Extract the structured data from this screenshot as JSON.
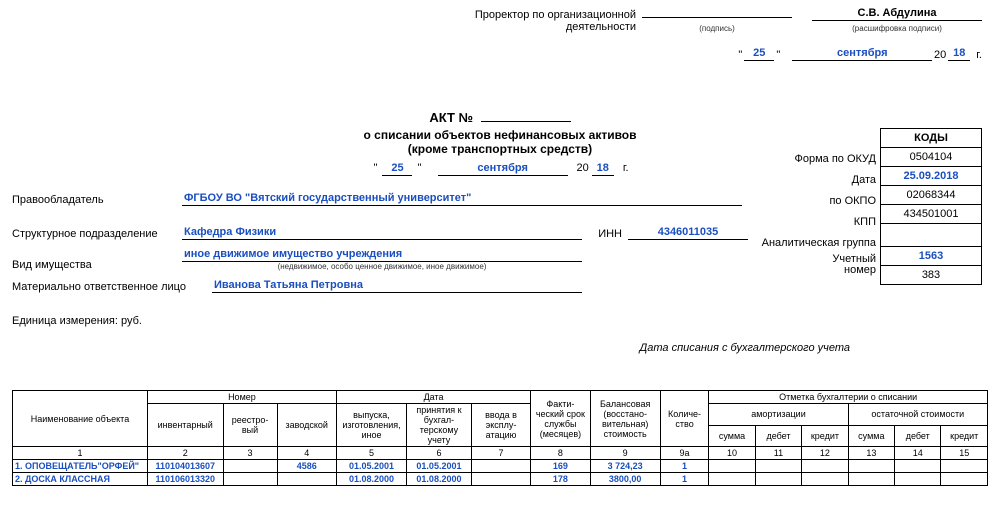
{
  "header": {
    "role_line1": "Проректор по организационной",
    "role_line2": "деятельности",
    "sign_sub": "(подпись)",
    "name": "С.В. Абдулина",
    "name_sub": "(расшифровка подписи)",
    "day": "25",
    "month": "сентября",
    "year_prefix": "20",
    "year": "18",
    "year_suffix": "г."
  },
  "title": {
    "act": "АКТ №",
    "sub1": "о списании объектов нефинансовых активов",
    "sub2": "(кроме транспортных средств)"
  },
  "date2": {
    "day": "25",
    "month": "сентября",
    "yp": "20",
    "y": "18",
    "ys": "г."
  },
  "fields": {
    "owner_label": "Правообладатель",
    "owner_val": "ФГБОУ ВО \"Вятский государственный университет\"",
    "dept_label": "Структурное подразделение",
    "dept_val": "Кафедра Физики",
    "inn_label": "ИНН",
    "inn_val": "4346011035",
    "kind_label": "Вид имущества",
    "kind_val": "иное движимое имущество учреждения",
    "kind_sub": "(недвижимое, особо ценное движимое, иное движимое)",
    "resp_label": "Материально ответственное лицо",
    "resp_val": "Иванова Татьяна Петровна",
    "unit_label": "Единица измерения: руб.",
    "writeoff_date_label": "Дата списания с бухгалтерского учета"
  },
  "codes": {
    "header": "КОДЫ",
    "okud_label": "Форма по ОКУД",
    "okud": "0504104",
    "date_label": "Дата",
    "date": "25.09.2018",
    "okpo_label": "по ОКПО",
    "okpo": "02068344",
    "kpp_label": "КПП",
    "kpp": "434501001",
    "analytic_label": "Аналитическая группа",
    "acct_label1": "Учетный",
    "acct_label2": "номер",
    "acct": "1563",
    "last": "383"
  },
  "table": {
    "h": {
      "name": "Наименование объекта",
      "num": "Номер",
      "inv": "инвентарный",
      "reestr": "реестро-\nвый",
      "zav": "заводской",
      "date": "Дата",
      "d1": "выпуска, изготовления, иное",
      "d2": "принятия к бухгал-\nтерскому учету",
      "d3": "ввода в эксплу-\nатацию",
      "fact": "Факти-ческий срок службы (месяцев)",
      "bal": "Балансовая (восстано-\nвительная) стоимость",
      "qty": "Количе-\nство",
      "mark": "Отметка бухгалтерии о списании",
      "amort": "амортизации",
      "ost": "остаточной стоимости",
      "sum": "сумма",
      "deb": "дебет",
      "cred": "кредит"
    },
    "cols": [
      "1",
      "2",
      "3",
      "4",
      "5",
      "6",
      "7",
      "8",
      "9",
      "9а",
      "10",
      "11",
      "12",
      "13",
      "14",
      "15"
    ],
    "rows": [
      {
        "name": "1. ОПОВЕЩАТЕЛЬ\"ОРФЕЙ\"",
        "inv": "110104013607",
        "reestr": "",
        "zav": "4586",
        "d1": "01.05.2001",
        "d2": "01.05.2001",
        "d3": "",
        "fact": "169",
        "bal": "3 724,23",
        "qty": "1"
      },
      {
        "name": "2. ДОСКА КЛАССНАЯ",
        "inv": "110106013320",
        "reestr": "",
        "zav": "",
        "d1": "01.08.2000",
        "d2": "01.08.2000",
        "d3": "",
        "fact": "178",
        "bal": "3800,00",
        "qty": "1"
      }
    ]
  }
}
